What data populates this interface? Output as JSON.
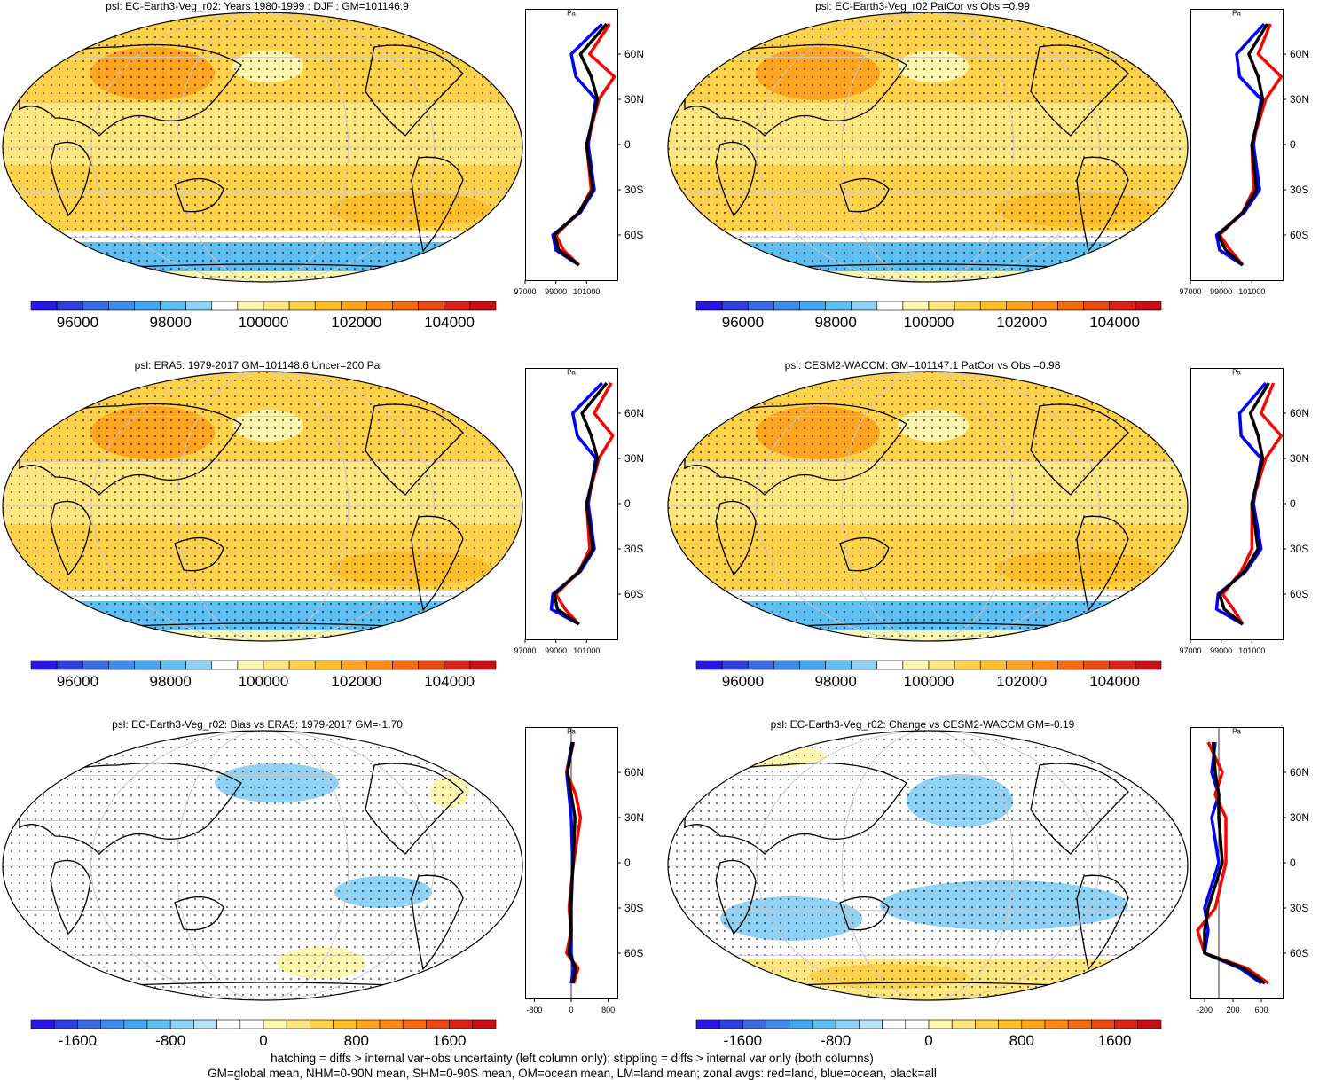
{
  "colors": {
    "abs_scale": [
      "#2a17e6",
      "#2f40dc",
      "#3a6be0",
      "#3f8ce8",
      "#45a6f0",
      "#5fbef2",
      "#8fd2f5",
      "#ffffff",
      "#fff6b0",
      "#ffe680",
      "#ffd24a",
      "#ffbf2a",
      "#ffa41e",
      "#ff8914",
      "#f76a10",
      "#e84a12",
      "#d82418",
      "#c8101a"
    ],
    "diff_scale": [
      "#2a17e6",
      "#2f40dc",
      "#3a6be0",
      "#3f8ce8",
      "#45a6f0",
      "#5fbef2",
      "#8fd2f5",
      "#b8e2f8",
      "#ffffff",
      "#ffffff",
      "#fff6b0",
      "#ffe680",
      "#ffd24a",
      "#ffbf2a",
      "#ffa41e",
      "#ff8914",
      "#f76a10",
      "#e84a12",
      "#d82418",
      "#c8101a"
    ],
    "ocean_abs": "#ffd24a",
    "south_band_abs": "#5fbef2",
    "ocean_diff": "#ffffff",
    "land_line": "#000000",
    "zonal_land": "#ff0000",
    "zonal_ocean": "#0000ff",
    "zonal_all": "#000000"
  },
  "panels": [
    {
      "title": "psl: EC-Earth3-Veg_r02: Years 1980-1999 : DJF : GM=101146.9",
      "colorbar_labels": [
        "96000",
        "98000",
        "100000",
        "102000",
        "104000"
      ],
      "zonal": {
        "unit": "Pa",
        "lat_labels": [
          "60N",
          "30N",
          "0",
          "30S",
          "60S"
        ],
        "x_labels": [
          "97000",
          "99000",
          "101000"
        ]
      }
    },
    {
      "title": "psl: EC-Earth3-Veg_r02 PatCor vs Obs =0.99",
      "colorbar_labels": [
        "96000",
        "98000",
        "100000",
        "102000",
        "104000"
      ],
      "zonal": {
        "unit": "Pa",
        "lat_labels": [
          "60N",
          "30N",
          "0",
          "30S",
          "60S"
        ],
        "x_labels": [
          "97000",
          "99000",
          "101000"
        ]
      }
    },
    {
      "title": "psl: ERA5: 1979-2017 GM=101148.6 Uncer=200 Pa",
      "colorbar_labels": [
        "96000",
        "98000",
        "100000",
        "102000",
        "104000"
      ],
      "zonal": {
        "unit": "Pa",
        "lat_labels": [
          "60N",
          "30N",
          "0",
          "30S",
          "60S"
        ],
        "x_labels": [
          "97000",
          "99000",
          "101000"
        ]
      }
    },
    {
      "title": "psl: CESM2-WACCM: GM=101147.1 PatCor vs Obs =0.98",
      "colorbar_labels": [
        "96000",
        "98000",
        "100000",
        "102000",
        "104000"
      ],
      "zonal": {
        "unit": "Pa",
        "lat_labels": [
          "60N",
          "30N",
          "0",
          "30S",
          "60S"
        ],
        "x_labels": [
          "97000",
          "99000",
          "101000"
        ]
      }
    },
    {
      "title": "psl: EC-Earth3-Veg_r02: Bias vs ERA5: 1979-2017 GM=-1.70",
      "colorbar_labels": [
        "-1600",
        "-800",
        "0",
        "800",
        "1600"
      ],
      "zonal": {
        "unit": "Pa",
        "lat_labels": [
          "60N",
          "30N",
          "0",
          "30S",
          "60S"
        ],
        "x_labels": [
          "-800",
          "0",
          "800"
        ]
      }
    },
    {
      "title": "psl: EC-Earth3-Veg_r02: Change vs CESM2-WACCM GM=-0.19",
      "colorbar_labels": [
        "-1600",
        "-800",
        "0",
        "800",
        "1600"
      ],
      "zonal": {
        "unit": "Pa",
        "lat_labels": [
          "60N",
          "30N",
          "0",
          "30S",
          "60S"
        ],
        "x_labels": [
          "-200",
          "200",
          "600"
        ]
      }
    }
  ],
  "chart_data": [
    {
      "type": "heatmap",
      "title": "psl: EC-Earth3-Veg_r02: Years 1980-1999 : DJF : GM=101146.9",
      "colorbar_range": [
        95000,
        105000
      ],
      "colorbar_ticks": [
        96000,
        98000,
        100000,
        102000,
        104000
      ],
      "zonal_mean": {
        "xlim": [
          97000,
          103000
        ],
        "lat": [
          80,
          60,
          45,
          30,
          0,
          -30,
          -45,
          -60,
          -70,
          -80
        ],
        "land": [
          102500,
          101200,
          102800,
          101800,
          101000,
          101300,
          100500,
          99000,
          99500,
          100500
        ],
        "ocean": [
          102000,
          100000,
          100300,
          101600,
          101100,
          101500,
          100600,
          98800,
          99000,
          100500
        ],
        "all": [
          102300,
          100600,
          101300,
          101700,
          101000,
          101400,
          100500,
          98900,
          99200,
          100500
        ]
      }
    },
    {
      "type": "heatmap",
      "title": "psl: EC-Earth3-Veg_r02 PatCor vs Obs =0.99",
      "colorbar_range": [
        95000,
        105000
      ],
      "colorbar_ticks": [
        96000,
        98000,
        100000,
        102000,
        104000
      ],
      "zonal_mean": {
        "xlim": [
          97000,
          103000
        ],
        "lat": [
          80,
          60,
          45,
          30,
          0,
          -30,
          -45,
          -60,
          -70,
          -80
        ],
        "land": [
          102200,
          101400,
          102900,
          101900,
          101000,
          101100,
          100400,
          98900,
          99600,
          100400
        ],
        "ocean": [
          101800,
          100000,
          100200,
          101600,
          101100,
          101500,
          100500,
          98700,
          98900,
          100400
        ],
        "all": [
          102000,
          100800,
          101400,
          101700,
          101000,
          101300,
          100400,
          98800,
          99300,
          100400
        ]
      }
    },
    {
      "type": "heatmap",
      "title": "psl: ERA5: 1979-2017 GM=101148.6 Uncer=200 Pa",
      "colorbar_range": [
        95000,
        105000
      ],
      "colorbar_ticks": [
        96000,
        98000,
        100000,
        102000,
        104000
      ],
      "zonal_mean": {
        "xlim": [
          97000,
          103000
        ],
        "lat": [
          80,
          60,
          45,
          30,
          0,
          -30,
          -45,
          -60,
          -70,
          -80
        ],
        "land": [
          102600,
          101500,
          102700,
          101800,
          101000,
          101200,
          100500,
          99000,
          99600,
          100500
        ],
        "ocean": [
          102000,
          100100,
          100400,
          101600,
          101100,
          101500,
          100600,
          98800,
          98700,
          100500
        ],
        "all": [
          102300,
          100700,
          101300,
          101700,
          101000,
          101400,
          100500,
          98900,
          99100,
          100500
        ]
      }
    },
    {
      "type": "heatmap",
      "title": "psl: CESM2-WACCM: GM=101147.1 PatCor vs Obs =0.98",
      "colorbar_range": [
        95000,
        105000
      ],
      "colorbar_ticks": [
        96000,
        98000,
        100000,
        102000,
        104000
      ],
      "zonal_mean": {
        "xlim": [
          97000,
          103000
        ],
        "lat": [
          80,
          60,
          45,
          30,
          0,
          -30,
          -45,
          -60,
          -70,
          -80
        ],
        "land": [
          102400,
          101600,
          102900,
          101900,
          101000,
          101000,
          100300,
          99100,
          99800,
          100400
        ],
        "ocean": [
          101900,
          100200,
          100300,
          101600,
          101100,
          101600,
          100600,
          98800,
          98700,
          100400
        ],
        "all": [
          102100,
          100900,
          101400,
          101700,
          101000,
          101400,
          100500,
          98900,
          99200,
          100400
        ]
      }
    },
    {
      "type": "heatmap",
      "title": "psl: EC-Earth3-Veg_r02: Bias vs ERA5: 1979-2017 GM=-1.70",
      "colorbar_range": [
        -2000,
        2000
      ],
      "colorbar_ticks": [
        -1600,
        -800,
        0,
        800,
        1600
      ],
      "zonal_mean": {
        "xlim": [
          -1000,
          1000
        ],
        "lat": [
          80,
          60,
          45,
          30,
          0,
          -30,
          -45,
          -60,
          -70,
          -80
        ],
        "land": [
          50,
          -100,
          100,
          200,
          50,
          -50,
          0,
          -100,
          150,
          50
        ],
        "ocean": [
          20,
          -100,
          -50,
          0,
          30,
          0,
          0,
          0,
          50,
          0
        ],
        "all": [
          30,
          -80,
          0,
          80,
          40,
          -20,
          0,
          -50,
          100,
          30
        ]
      }
    },
    {
      "type": "heatmap",
      "title": "psl: EC-Earth3-Veg_r02: Change vs CESM2-WACCM GM=-0.19",
      "colorbar_range": [
        -2000,
        2000
      ],
      "colorbar_ticks": [
        -1600,
        -800,
        0,
        800,
        1600
      ],
      "zonal_mean": {
        "xlim": [
          -400,
          900
        ],
        "lat": [
          80,
          60,
          45,
          30,
          0,
          -30,
          -45,
          -60,
          -70,
          -80
        ],
        "land": [
          -150,
          50,
          -50,
          100,
          100,
          -50,
          -300,
          -200,
          400,
          700
        ],
        "ocean": [
          -50,
          -100,
          0,
          -100,
          0,
          -200,
          -150,
          -200,
          300,
          600
        ],
        "all": [
          -80,
          -50,
          0,
          0,
          50,
          -150,
          -200,
          -200,
          350,
          650
        ]
      }
    }
  ],
  "caption": {
    "line1": "hatching = diffs > internal var+obs uncertainty (left column only); stippling = diffs > internal var only (both columns)",
    "line2": "GM=global mean, NHM=0-90N mean, SHM=0-90S mean, OM=ocean mean, LM=land mean; zonal avgs: red=land, blue=ocean, black=all"
  }
}
